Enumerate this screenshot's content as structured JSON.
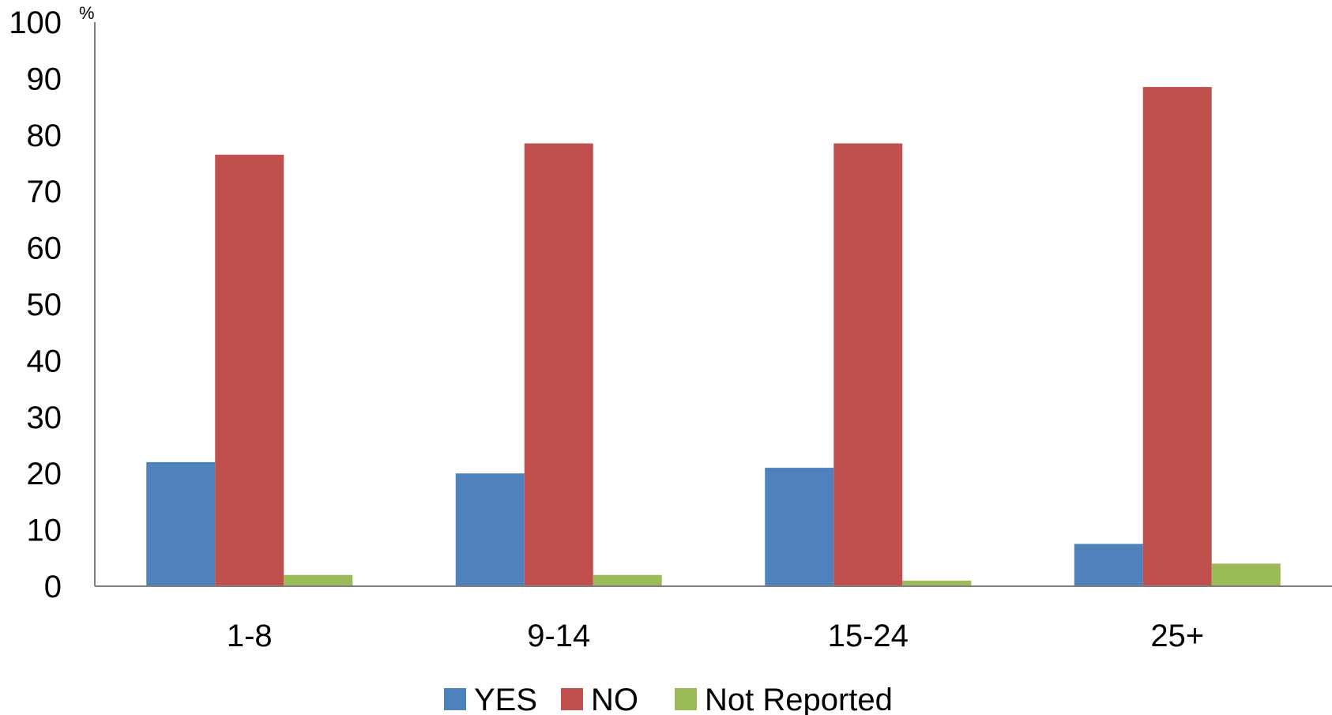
{
  "chart_data": {
    "type": "bar",
    "categories": [
      "1-8",
      "9-14",
      "15-24",
      "25+"
    ],
    "series": [
      {
        "name": "YES",
        "values": [
          22,
          20,
          21,
          7.5
        ],
        "color": "#4F81BD"
      },
      {
        "name": "NO",
        "values": [
          76.5,
          78.5,
          78.5,
          88.5
        ],
        "color": "#C0504D"
      },
      {
        "name": "Not Reported",
        "values": [
          2,
          2,
          1,
          4
        ],
        "color": "#9BBB59"
      }
    ],
    "y_unit": "%",
    "ylim": [
      0,
      100
    ],
    "y_ticks": [
      "0",
      "10",
      "20",
      "30",
      "40",
      "50",
      "60",
      "70",
      "80",
      "90",
      "100"
    ],
    "grid": false,
    "legend_position": "bottom",
    "axis_color": "#808080"
  }
}
